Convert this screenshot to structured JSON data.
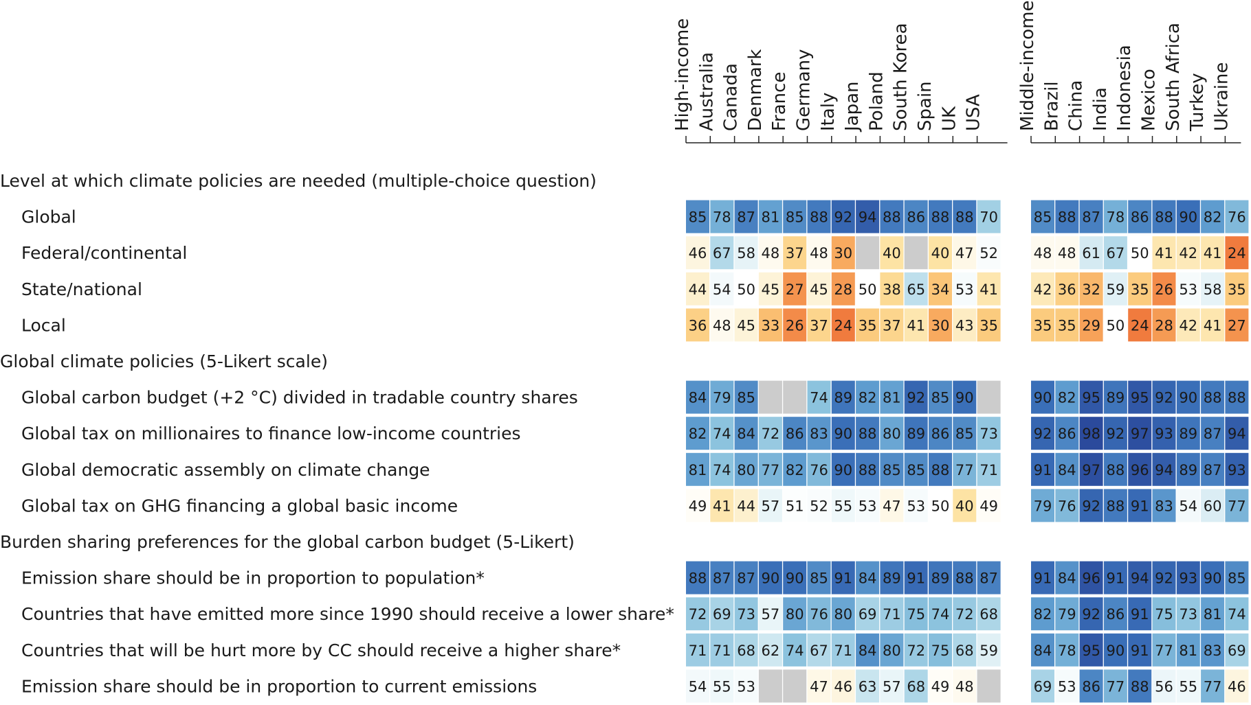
{
  "chart_data": {
    "type": "heatmap",
    "unit": "percent",
    "groups": [
      {
        "name": "High-income",
        "countries": [
          "Australia",
          "Canada",
          "Denmark",
          "France",
          "Germany",
          "Italy",
          "Japan",
          "Poland",
          "South Korea",
          "Spain",
          "UK",
          "USA"
        ]
      },
      {
        "name": "Middle-income",
        "countries": [
          "Brazil",
          "China",
          "India",
          "Indonesia",
          "Mexico",
          "South Africa",
          "Turkey",
          "Ukraine"
        ]
      }
    ],
    "columns_left": [
      "High-income",
      "Australia",
      "Canada",
      "Denmark",
      "France",
      "Germany",
      "Italy",
      "Japan",
      "Poland",
      "South Korea",
      "Spain",
      "UK",
      "USA"
    ],
    "columns_right": [
      "Middle-income",
      "Brazil",
      "China",
      "India",
      "Indonesia",
      "Mexico",
      "South Africa",
      "Turkey",
      "Ukraine"
    ],
    "sections": [
      {
        "title": "Level at which climate policies are needed (multiple-choice question)",
        "rows": [
          {
            "label": "Global",
            "left": [
              85,
              78,
              87,
              81,
              85,
              88,
              92,
              94,
              88,
              86,
              88,
              88,
              70
            ],
            "right": [
              85,
              88,
              87,
              78,
              86,
              88,
              90,
              82,
              76
            ]
          },
          {
            "label": "Federal/continental",
            "left": [
              46,
              67,
              58,
              48,
              37,
              48,
              30,
              null,
              40,
              null,
              40,
              47,
              52
            ],
            "right": [
              48,
              48,
              61,
              67,
              50,
              41,
              42,
              41,
              24
            ]
          },
          {
            "label": "State/national",
            "left": [
              44,
              54,
              50,
              45,
              27,
              45,
              28,
              50,
              38,
              65,
              34,
              53,
              41
            ],
            "right": [
              42,
              36,
              32,
              59,
              35,
              26,
              53,
              58,
              35
            ]
          },
          {
            "label": "Local",
            "left": [
              36,
              48,
              45,
              33,
              26,
              37,
              24,
              35,
              37,
              41,
              30,
              43,
              35
            ],
            "right": [
              35,
              35,
              29,
              50,
              24,
              28,
              42,
              41,
              27
            ]
          }
        ]
      },
      {
        "title": "Global climate policies (5-Likert scale)",
        "rows": [
          {
            "label": "Global carbon budget (+2 °C) divided in tradable country shares",
            "left": [
              84,
              79,
              85,
              null,
              null,
              74,
              89,
              82,
              81,
              92,
              85,
              90,
              null
            ],
            "right": [
              90,
              82,
              95,
              89,
              95,
              92,
              90,
              88,
              88
            ]
          },
          {
            "label": "Global tax on millionaires to finance low-income countries",
            "left": [
              82,
              74,
              84,
              72,
              86,
              83,
              90,
              88,
              80,
              89,
              86,
              85,
              73
            ],
            "right": [
              92,
              86,
              98,
              92,
              97,
              93,
              89,
              87,
              94
            ]
          },
          {
            "label": "Global democratic assembly on climate change",
            "left": [
              81,
              74,
              80,
              77,
              82,
              76,
              90,
              88,
              85,
              85,
              88,
              77,
              71
            ],
            "right": [
              91,
              84,
              97,
              88,
              96,
              94,
              89,
              87,
              93
            ]
          },
          {
            "label": "Global tax on GHG financing a global basic income",
            "left": [
              49,
              41,
              44,
              57,
              51,
              52,
              55,
              53,
              47,
              53,
              50,
              40,
              49
            ],
            "right": [
              79,
              76,
              92,
              88,
              91,
              83,
              54,
              60,
              77
            ]
          }
        ]
      },
      {
        "title": "Burden sharing preferences for the global carbon budget (5-Likert)",
        "rows": [
          {
            "label": "Emission share should be in proportion to population*",
            "left": [
              88,
              87,
              87,
              90,
              90,
              85,
              91,
              84,
              89,
              91,
              89,
              88,
              87
            ],
            "right": [
              91,
              84,
              96,
              91,
              94,
              92,
              93,
              90,
              85
            ]
          },
          {
            "label": "Countries that have emitted more since 1990 should receive a lower share*",
            "left": [
              72,
              69,
              73,
              57,
              80,
              76,
              80,
              69,
              71,
              75,
              74,
              72,
              68
            ],
            "right": [
              82,
              79,
              92,
              86,
              91,
              75,
              73,
              81,
              74
            ]
          },
          {
            "label": "Countries that will be hurt more by CC should receive a higher share*",
            "left": [
              71,
              71,
              68,
              62,
              74,
              67,
              71,
              84,
              80,
              72,
              75,
              68,
              59
            ],
            "right": [
              84,
              78,
              95,
              90,
              91,
              77,
              81,
              83,
              69
            ]
          },
          {
            "label": "Emission share should be in proportion to current emissions",
            "left": [
              54,
              55,
              53,
              null,
              null,
              47,
              46,
              63,
              57,
              68,
              49,
              48,
              null
            ],
            "right": [
              69,
              53,
              86,
              77,
              88,
              56,
              55,
              77,
              46
            ]
          }
        ]
      }
    ],
    "color_scale": {
      "type": "diverging",
      "midpoint": 50,
      "low_color": "#f07b3e",
      "mid_color": "#ffffff",
      "high_color": "#2b4a9c",
      "missing_color": "#cccccc"
    }
  }
}
